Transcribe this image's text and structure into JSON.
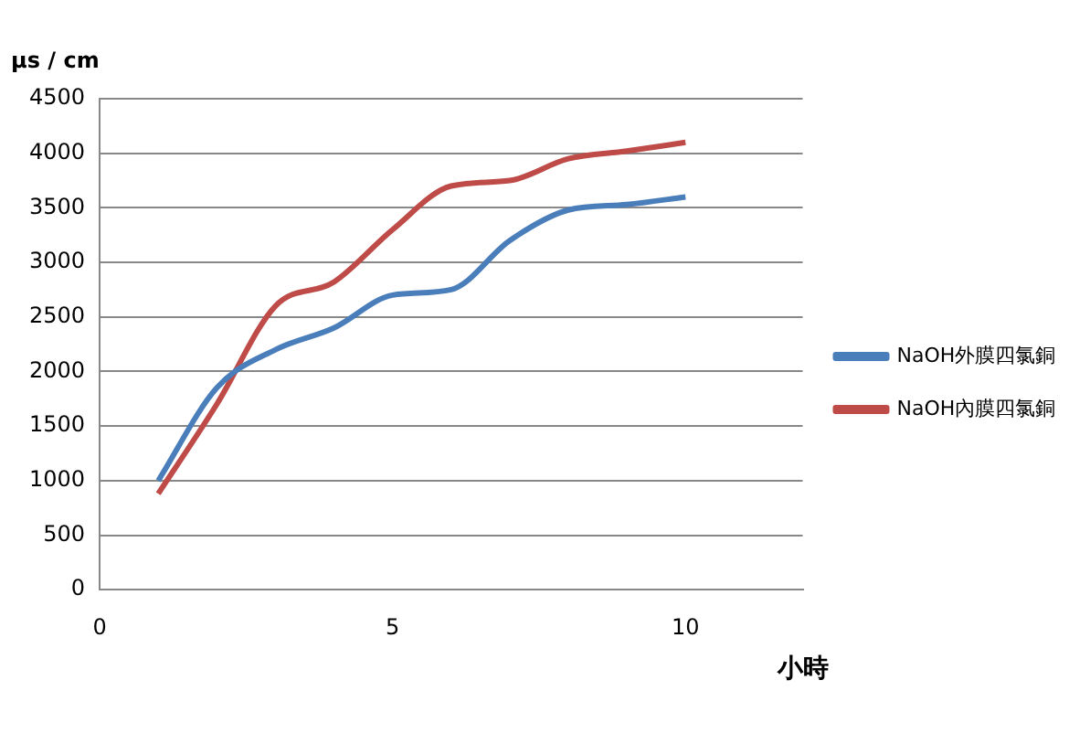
{
  "chart_data": {
    "type": "line",
    "ylabel": "μs / cm",
    "xlabel": "小時",
    "x": [
      1,
      2,
      3,
      4,
      5,
      6,
      7,
      8,
      9,
      10
    ],
    "series": [
      {
        "name": "NaOH外膜四氯銅",
        "color": "#4a7ebb",
        "values": [
          1000,
          1850,
          2200,
          2400,
          2700,
          2750,
          3200,
          3480,
          3530,
          3600
        ]
      },
      {
        "name": "NaOH內膜四氯銅",
        "color": "#be4b48",
        "values": [
          880,
          1700,
          2600,
          2820,
          3300,
          3700,
          3750,
          3950,
          4020,
          4100
        ]
      }
    ],
    "xlim": [
      0,
      12
    ],
    "xticks": [
      0,
      5,
      10
    ],
    "ylim": [
      0,
      4500
    ],
    "yticks": [
      0,
      500,
      1000,
      1500,
      2000,
      2500,
      3000,
      3500,
      4000,
      4500
    ],
    "grid": "y",
    "legend": "right",
    "marker": "none",
    "line_style": "solid"
  }
}
